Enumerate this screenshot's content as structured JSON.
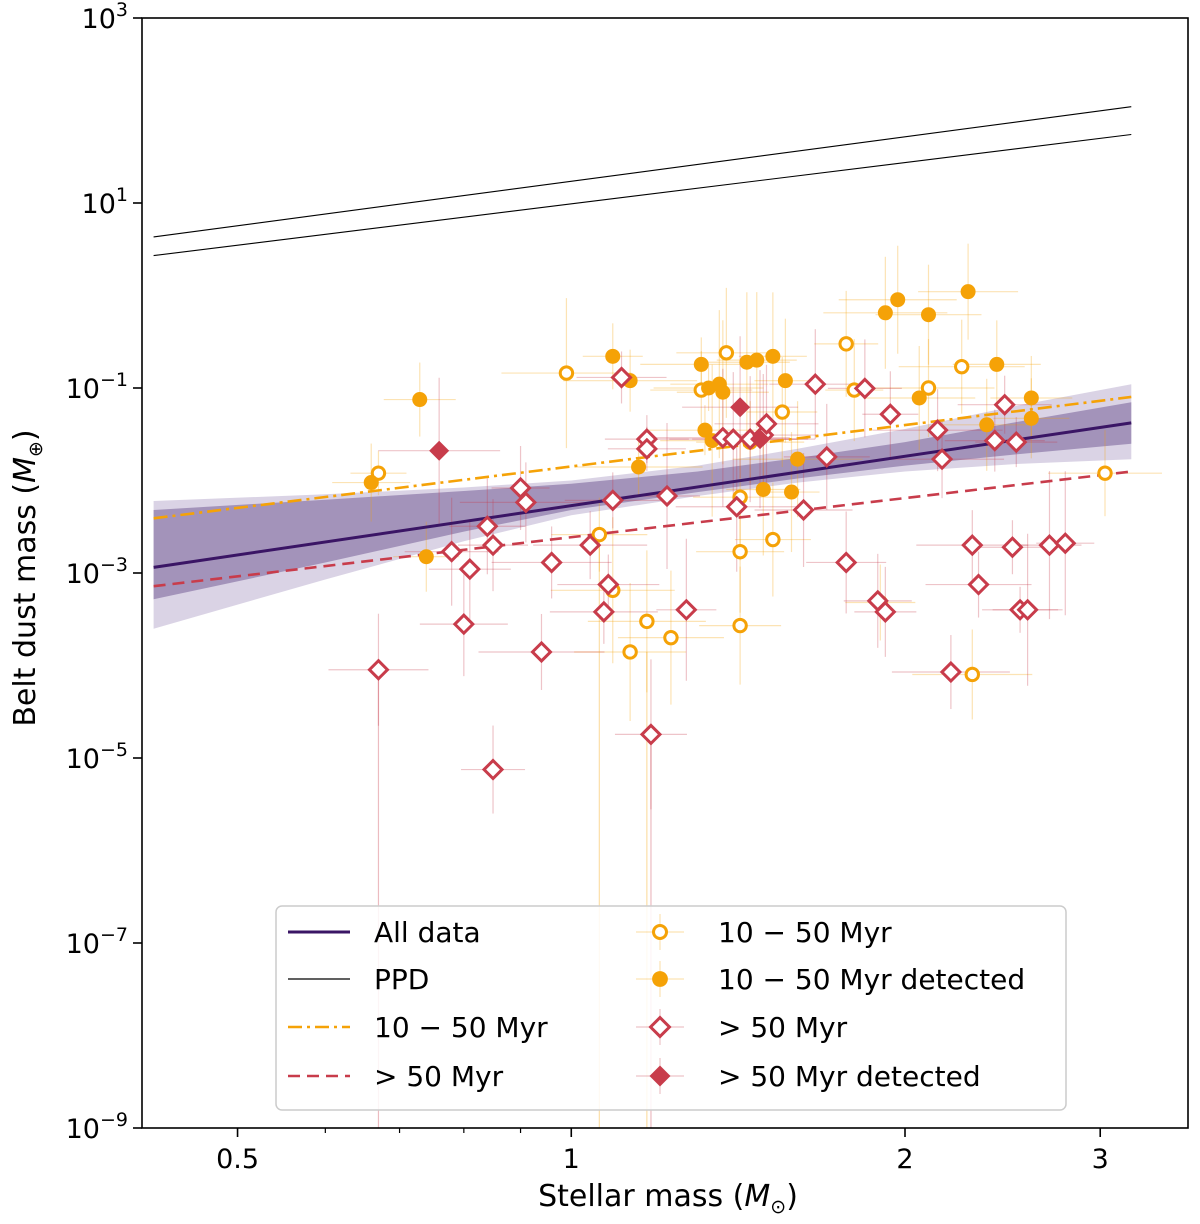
{
  "chart_data": {
    "type": "scatter",
    "xlabel": "Stellar mass",
    "xlabel_unit": "M",
    "xlabel_unit_sub": "⊙",
    "ylabel": "Belt dust mass",
    "ylabel_unit": "M",
    "ylabel_unit_sub": "⊕",
    "x_scale": "log",
    "y_scale": "log",
    "xlim": [
      0.41,
      3.6
    ],
    "ylim": [
      1e-09,
      1000
    ],
    "grid": false,
    "legend_placement": "bottom-center",
    "x_ticks": [
      {
        "value": 0.5,
        "label": "0.5"
      },
      {
        "value": 1,
        "label": "1"
      },
      {
        "value": 2,
        "label": "2"
      },
      {
        "value": 3,
        "label": "3"
      }
    ],
    "y_ticks": [
      {
        "value": 1e-09,
        "base": "10",
        "exp": "−9"
      },
      {
        "value": 1e-07,
        "base": "10",
        "exp": "−7"
      },
      {
        "value": 1e-05,
        "base": "10",
        "exp": "−5"
      },
      {
        "value": 0.001,
        "base": "10",
        "exp": "−3"
      },
      {
        "value": 0.1,
        "base": "10",
        "exp": "−1"
      },
      {
        "value": 10,
        "base": "10",
        "exp": "1"
      },
      {
        "value": 1000,
        "base": "10",
        "exp": "3"
      }
    ],
    "colors": {
      "all_data": "#3a1565",
      "band_inner": "#8b78a8",
      "band_outer": "#d3cbe0",
      "ppd": "#000000",
      "young": "#f5a207",
      "old": "#c83c4b"
    },
    "lines": [
      {
        "name": "All data",
        "style": "solid",
        "color": "#3a1565",
        "x": [
          0.42,
          3.2
        ],
        "y": [
          0.00115,
          0.042
        ]
      },
      {
        "name": "PPD",
        "style": "thin",
        "color": "#000000",
        "x": [
          0.42,
          3.2
        ],
        "y": [
          4.3,
          110
        ]
      },
      {
        "name": "PPD",
        "style": "thin",
        "color": "#000000",
        "x": [
          0.42,
          3.2
        ],
        "y": [
          2.7,
          55
        ]
      },
      {
        "name": "10 − 50 Myr",
        "style": "dashdot",
        "color": "#f5a207",
        "x": [
          0.42,
          3.2
        ],
        "y": [
          0.0039,
          0.08
        ]
      },
      {
        "name": "> 50 Myr",
        "style": "dashed",
        "color": "#c83c4b",
        "x": [
          0.42,
          3.2
        ],
        "y": [
          0.00072,
          0.0125
        ]
      }
    ],
    "band": {
      "x": [
        0.42,
        0.6,
        0.8,
        1.0,
        1.3,
        1.6,
        2.0,
        2.5,
        3.2
      ],
      "inner_low": [
        0.00052,
        0.0013,
        0.0028,
        0.0048,
        0.0075,
        0.0105,
        0.0145,
        0.019,
        0.025
      ],
      "inner_high": [
        0.0048,
        0.0062,
        0.0077,
        0.0092,
        0.0125,
        0.0175,
        0.026,
        0.042,
        0.07
      ],
      "outer_low": [
        0.00025,
        0.00085,
        0.0022,
        0.0042,
        0.0068,
        0.0095,
        0.0125,
        0.015,
        0.017
      ],
      "outer_high": [
        0.006,
        0.0071,
        0.0084,
        0.01,
        0.0145,
        0.022,
        0.036,
        0.063,
        0.11
      ]
    },
    "series": [
      {
        "name": "10 − 50 Myr",
        "marker": "circle-open",
        "color": "#f5a207",
        "points": [
          [
            0.67,
            0.012
          ],
          [
            0.99,
            0.145
          ],
          [
            1.09,
            0.00065
          ],
          [
            1.17,
            0.0003
          ],
          [
            1.13,
            0.00014
          ],
          [
            1.23,
            0.0002
          ],
          [
            1.38,
            0.24
          ],
          [
            1.42,
            0.0066
          ],
          [
            1.42,
            0.0017
          ],
          [
            1.42,
            0.00027
          ],
          [
            1.52,
            0.0023
          ],
          [
            1.55,
            0.055
          ],
          [
            1.77,
            0.3
          ],
          [
            1.8,
            0.095
          ],
          [
            2.1,
            0.1
          ],
          [
            2.25,
            0.17
          ],
          [
            2.3,
            8e-05
          ],
          [
            3.03,
            0.012
          ],
          [
            1.45,
            0.026
          ],
          [
            1.31,
            0.095
          ],
          [
            1.06,
            0.0026
          ]
        ]
      },
      {
        "name": "10 − 50 Myr detected",
        "marker": "circle-filled",
        "color": "#f5a207",
        "points": [
          [
            0.66,
            0.0095
          ],
          [
            0.73,
            0.075
          ],
          [
            0.74,
            0.0015
          ],
          [
            1.09,
            0.22
          ],
          [
            1.13,
            0.12
          ],
          [
            1.15,
            0.014
          ],
          [
            1.31,
            0.18
          ],
          [
            1.32,
            0.035
          ],
          [
            1.33,
            0.1
          ],
          [
            1.34,
            0.027
          ],
          [
            1.36,
            0.11
          ],
          [
            1.37,
            0.09
          ],
          [
            1.44,
            0.19
          ],
          [
            1.47,
            0.2
          ],
          [
            1.49,
            0.008
          ],
          [
            1.52,
            0.22
          ],
          [
            1.56,
            0.12
          ],
          [
            1.58,
            0.0075
          ],
          [
            1.6,
            0.017
          ],
          [
            1.92,
            0.65
          ],
          [
            1.97,
            0.9
          ],
          [
            2.06,
            0.078
          ],
          [
            2.1,
            0.62
          ],
          [
            2.28,
            1.1
          ],
          [
            2.37,
            0.04
          ],
          [
            2.42,
            0.18
          ],
          [
            2.6,
            0.078
          ],
          [
            2.6,
            0.047
          ],
          [
            1.9,
            0.00048
          ]
        ]
      },
      {
        "name": "> 50 Myr",
        "marker": "diamond-open",
        "color": "#c83c4b",
        "points": [
          [
            0.67,
            9e-05
          ],
          [
            0.78,
            0.0017
          ],
          [
            0.8,
            0.00028
          ],
          [
            0.81,
            0.0011
          ],
          [
            0.84,
            0.0032
          ],
          [
            0.85,
            0.002
          ],
          [
            0.85,
            7.5e-06
          ],
          [
            0.9,
            0.0083
          ],
          [
            0.91,
            0.0058
          ],
          [
            0.94,
            0.00014
          ],
          [
            0.96,
            0.0013
          ],
          [
            1.04,
            0.002
          ],
          [
            1.07,
            0.00038
          ],
          [
            1.08,
            0.00075
          ],
          [
            1.09,
            0.0061
          ],
          [
            1.11,
            0.13
          ],
          [
            1.17,
            0.028
          ],
          [
            1.17,
            0.022
          ],
          [
            1.18,
            1.8e-05
          ],
          [
            1.22,
            0.0068
          ],
          [
            1.27,
            0.0004
          ],
          [
            1.37,
            0.029
          ],
          [
            1.4,
            0.028
          ],
          [
            1.41,
            0.0052
          ],
          [
            1.45,
            0.028
          ],
          [
            1.49,
            0.031
          ],
          [
            1.5,
            0.041
          ],
          [
            1.62,
            0.0048
          ],
          [
            1.66,
            0.11
          ],
          [
            1.7,
            0.018
          ],
          [
            1.77,
            0.0013
          ],
          [
            1.84,
            0.099
          ],
          [
            1.89,
            0.0005
          ],
          [
            1.92,
            0.00038
          ],
          [
            1.94,
            0.052
          ],
          [
            2.14,
            0.035
          ],
          [
            2.16,
            0.017
          ],
          [
            2.2,
            8.5e-05
          ],
          [
            2.3,
            0.002
          ],
          [
            2.33,
            0.00075
          ],
          [
            2.41,
            0.027
          ],
          [
            2.46,
            0.066
          ],
          [
            2.5,
            0.0019
          ],
          [
            2.52,
            0.026
          ],
          [
            2.54,
            0.0004
          ],
          [
            2.58,
            0.0004
          ],
          [
            2.7,
            0.002
          ],
          [
            2.79,
            0.0021
          ]
        ]
      },
      {
        "name": "> 50 Myr detected",
        "marker": "diamond-filled",
        "color": "#c83c4b",
        "points": [
          [
            0.76,
            0.021
          ],
          [
            1.42,
            0.062
          ],
          [
            1.48,
            0.028
          ]
        ]
      }
    ],
    "legend": {
      "col1": [
        {
          "label": "All data",
          "symbol": "line-solid"
        },
        {
          "label": "PPD",
          "symbol": "line-thin"
        },
        {
          "label": "10 − 50 Myr",
          "symbol": "line-dashdot"
        },
        {
          "label": "> 50 Myr",
          "symbol": "line-dashed"
        }
      ],
      "col2": [
        {
          "label": "10 − 50 Myr",
          "symbol": "circle-open"
        },
        {
          "label": "10 − 50 Myr detected",
          "symbol": "circle-filled"
        },
        {
          "label": "> 50 Myr",
          "symbol": "diamond-open"
        },
        {
          "label": "> 50 Myr detected",
          "symbol": "diamond-filled"
        }
      ]
    }
  }
}
